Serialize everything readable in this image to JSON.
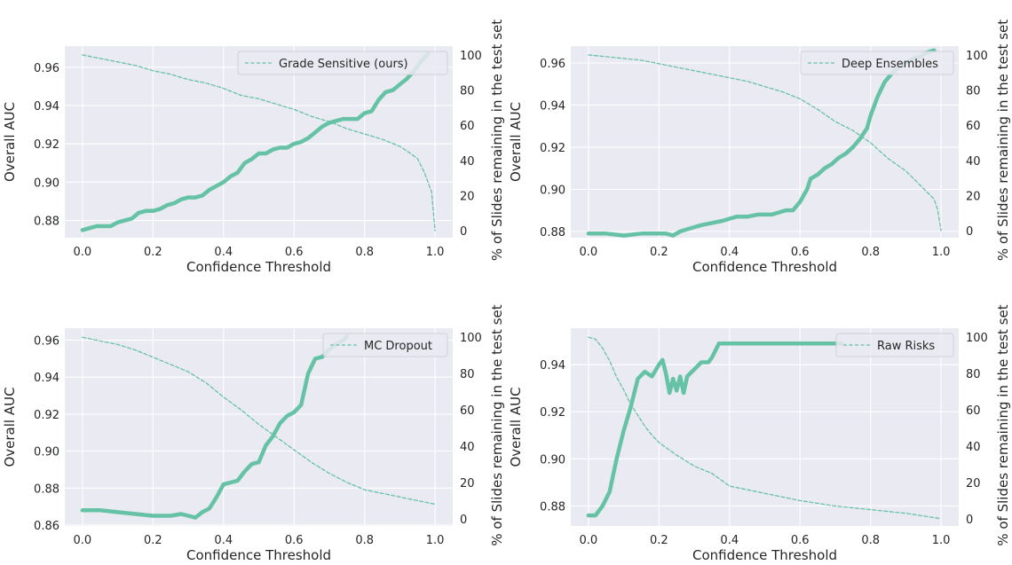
{
  "figure": {
    "shared": {
      "xlabel": "Confidence Threshold",
      "ylabel_left": "Overall AUC",
      "ylabel_right": "% of Slides remaining in the test set",
      "x_ticks": [
        "0.0",
        "0.2",
        "0.4",
        "0.6",
        "0.8",
        "1.0"
      ],
      "right_ticks": [
        "0",
        "20",
        "40",
        "60",
        "80",
        "100"
      ],
      "line_color": "#66c2a5",
      "background_color": "#eaeaf2",
      "grid": true
    }
  },
  "chart_data": [
    {
      "type": "line",
      "legend_label": "Grade Sensitive (ours)",
      "legend_position": "top-right",
      "xlim": [
        -0.05,
        1.05
      ],
      "ylim_left": [
        0.871,
        0.971
      ],
      "ylim_right": [
        -4,
        105
      ],
      "y_ticks": [
        "0.88",
        "0.90",
        "0.92",
        "0.94",
        "0.96"
      ],
      "series": [
        {
          "axis": "left",
          "style": "solid-thick",
          "x": [
            0.0,
            0.02,
            0.04,
            0.08,
            0.1,
            0.12,
            0.14,
            0.16,
            0.18,
            0.2,
            0.22,
            0.24,
            0.26,
            0.28,
            0.3,
            0.32,
            0.34,
            0.36,
            0.38,
            0.4,
            0.42,
            0.44,
            0.46,
            0.48,
            0.5,
            0.52,
            0.54,
            0.56,
            0.58,
            0.6,
            0.62,
            0.64,
            0.66,
            0.68,
            0.7,
            0.72,
            0.74,
            0.76,
            0.78,
            0.8,
            0.82,
            0.84,
            0.86,
            0.88,
            0.9,
            0.92,
            0.94,
            0.96,
            0.98
          ],
          "y": [
            0.875,
            0.876,
            0.877,
            0.877,
            0.879,
            0.88,
            0.881,
            0.884,
            0.885,
            0.885,
            0.886,
            0.888,
            0.889,
            0.891,
            0.892,
            0.892,
            0.893,
            0.896,
            0.898,
            0.9,
            0.903,
            0.905,
            0.91,
            0.912,
            0.915,
            0.915,
            0.917,
            0.918,
            0.918,
            0.92,
            0.921,
            0.923,
            0.926,
            0.929,
            0.931,
            0.932,
            0.933,
            0.933,
            0.933,
            0.936,
            0.937,
            0.943,
            0.947,
            0.948,
            0.951,
            0.954,
            0.958,
            0.963,
            0.967
          ]
        },
        {
          "axis": "right",
          "style": "dashed-thin",
          "x": [
            0.0,
            0.05,
            0.1,
            0.15,
            0.2,
            0.25,
            0.3,
            0.35,
            0.4,
            0.45,
            0.5,
            0.55,
            0.6,
            0.65,
            0.7,
            0.75,
            0.8,
            0.85,
            0.9,
            0.93,
            0.95,
            0.97,
            0.99,
            1.0
          ],
          "y": [
            100,
            98,
            96,
            94,
            91,
            89,
            86,
            84,
            81,
            77,
            75,
            72,
            69,
            65,
            62,
            58,
            55,
            52,
            48,
            44,
            41,
            33,
            22,
            0
          ]
        }
      ]
    },
    {
      "type": "line",
      "legend_label": "Deep Ensembles",
      "legend_position": "top-right",
      "xlim": [
        -0.05,
        1.05
      ],
      "ylim_left": [
        0.877,
        0.968
      ],
      "ylim_right": [
        -4,
        105
      ],
      "y_ticks": [
        "0.88",
        "0.90",
        "0.92",
        "0.94",
        "0.96"
      ],
      "series": [
        {
          "axis": "left",
          "style": "solid-thick",
          "x": [
            0.0,
            0.05,
            0.1,
            0.15,
            0.2,
            0.22,
            0.24,
            0.26,
            0.28,
            0.3,
            0.32,
            0.35,
            0.38,
            0.4,
            0.42,
            0.45,
            0.48,
            0.5,
            0.52,
            0.54,
            0.56,
            0.58,
            0.6,
            0.62,
            0.63,
            0.65,
            0.67,
            0.69,
            0.71,
            0.73,
            0.75,
            0.77,
            0.79,
            0.8,
            0.82,
            0.84,
            0.86,
            0.88,
            0.9,
            0.92,
            0.94,
            0.96,
            0.98
          ],
          "y": [
            0.879,
            0.879,
            0.878,
            0.879,
            0.879,
            0.879,
            0.878,
            0.88,
            0.881,
            0.882,
            0.883,
            0.884,
            0.885,
            0.886,
            0.887,
            0.887,
            0.888,
            0.888,
            0.888,
            0.889,
            0.89,
            0.89,
            0.894,
            0.9,
            0.905,
            0.907,
            0.91,
            0.912,
            0.915,
            0.917,
            0.92,
            0.924,
            0.929,
            0.935,
            0.944,
            0.951,
            0.955,
            0.958,
            0.96,
            0.962,
            0.963,
            0.965,
            0.966
          ]
        },
        {
          "axis": "right",
          "style": "dashed-thin",
          "x": [
            0.0,
            0.05,
            0.1,
            0.15,
            0.2,
            0.25,
            0.3,
            0.35,
            0.4,
            0.45,
            0.5,
            0.55,
            0.6,
            0.65,
            0.7,
            0.75,
            0.8,
            0.85,
            0.9,
            0.93,
            0.96,
            0.98,
            0.99,
            1.0
          ],
          "y": [
            100,
            99,
            98,
            97,
            95,
            93,
            91,
            89,
            87,
            85,
            82,
            79,
            75,
            69,
            62,
            57,
            50,
            41,
            34,
            28,
            22,
            18,
            12,
            0
          ]
        }
      ]
    },
    {
      "type": "line",
      "legend_label": "MC Dropout",
      "legend_position": "top-right",
      "xlim": [
        -0.05,
        1.05
      ],
      "ylim_left": [
        0.8595,
        0.9665
      ],
      "ylim_right": [
        -4,
        105
      ],
      "y_ticks": [
        "0.86",
        "0.88",
        "0.90",
        "0.92",
        "0.94",
        "0.96"
      ],
      "series": [
        {
          "axis": "left",
          "style": "solid-thick",
          "x": [
            0.0,
            0.05,
            0.1,
            0.15,
            0.2,
            0.25,
            0.28,
            0.3,
            0.32,
            0.34,
            0.36,
            0.38,
            0.4,
            0.42,
            0.44,
            0.46,
            0.48,
            0.5,
            0.52,
            0.54,
            0.56,
            0.58,
            0.6,
            0.62,
            0.64,
            0.66,
            0.68,
            0.7,
            0.72,
            0.74,
            0.75
          ],
          "y": [
            0.868,
            0.868,
            0.867,
            0.866,
            0.865,
            0.865,
            0.866,
            0.865,
            0.864,
            0.867,
            0.869,
            0.875,
            0.882,
            0.883,
            0.884,
            0.889,
            0.893,
            0.894,
            0.903,
            0.908,
            0.915,
            0.919,
            0.921,
            0.925,
            0.942,
            0.95,
            0.951,
            0.955,
            0.958,
            0.96,
            0.962
          ]
        },
        {
          "axis": "right",
          "style": "dashed-thin",
          "x": [
            0.0,
            0.05,
            0.1,
            0.15,
            0.2,
            0.25,
            0.3,
            0.35,
            0.4,
            0.45,
            0.5,
            0.55,
            0.6,
            0.65,
            0.7,
            0.75,
            0.8,
            0.85,
            0.9,
            0.95,
            1.0
          ],
          "y": [
            100,
            98,
            96,
            93,
            89,
            85,
            81,
            75,
            67,
            60,
            52,
            45,
            38,
            31,
            25,
            20,
            16,
            14,
            12,
            10,
            8
          ]
        }
      ]
    },
    {
      "type": "line",
      "legend_label": "Raw Risks",
      "legend_position": "top-right",
      "xlim": [
        -0.05,
        1.05
      ],
      "ylim_left": [
        0.8715,
        0.9555
      ],
      "ylim_right": [
        -4,
        105
      ],
      "y_ticks": [
        "0.88",
        "0.90",
        "0.92",
        "0.94"
      ],
      "series": [
        {
          "axis": "left",
          "style": "solid-thick",
          "x": [
            0.0,
            0.02,
            0.04,
            0.06,
            0.08,
            0.1,
            0.12,
            0.14,
            0.16,
            0.18,
            0.2,
            0.21,
            0.22,
            0.23,
            0.24,
            0.25,
            0.26,
            0.27,
            0.28,
            0.3,
            0.32,
            0.34,
            0.35,
            0.37,
            0.4,
            0.5,
            0.6,
            0.7,
            0.72
          ],
          "y": [
            0.876,
            0.876,
            0.88,
            0.886,
            0.9,
            0.912,
            0.922,
            0.934,
            0.937,
            0.935,
            0.94,
            0.942,
            0.936,
            0.928,
            0.934,
            0.929,
            0.935,
            0.928,
            0.935,
            0.938,
            0.941,
            0.941,
            0.943,
            0.949,
            0.949,
            0.949,
            0.949,
            0.949,
            0.949
          ]
        },
        {
          "axis": "right",
          "style": "dashed-thin",
          "x": [
            0.0,
            0.02,
            0.04,
            0.06,
            0.08,
            0.1,
            0.12,
            0.14,
            0.16,
            0.18,
            0.2,
            0.25,
            0.3,
            0.35,
            0.4,
            0.5,
            0.6,
            0.7,
            0.8,
            0.9,
            1.0
          ],
          "y": [
            100,
            99,
            94,
            87,
            78,
            71,
            63,
            57,
            51,
            46,
            42,
            35,
            29,
            25,
            18,
            14,
            10,
            7,
            5,
            3,
            0
          ]
        }
      ]
    }
  ]
}
